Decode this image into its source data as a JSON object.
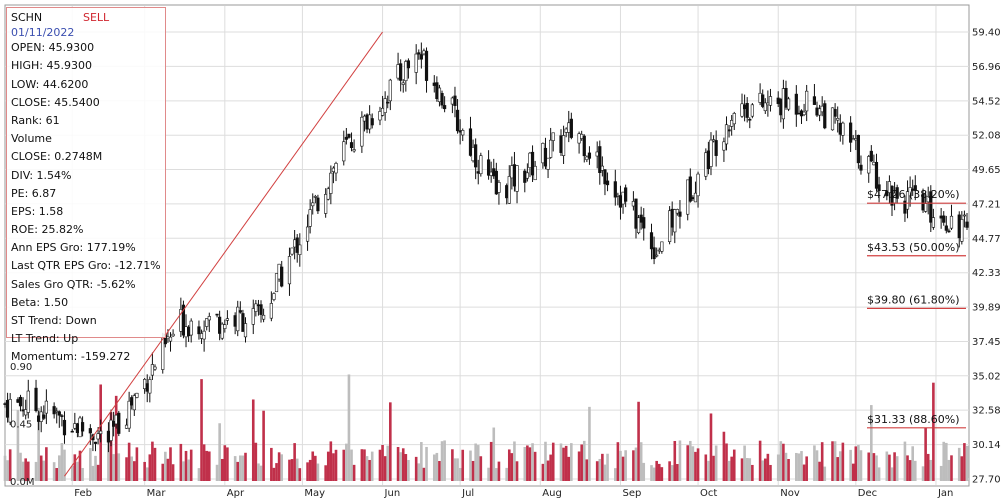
{
  "ticker": "SCHN",
  "signal": "SELL",
  "date": "01/11/2022",
  "stats": [
    {
      "label": "OPEN",
      "value": "45.9300"
    },
    {
      "label": "HIGH",
      "value": "45.9300"
    },
    {
      "label": "LOW",
      "value": "44.6200"
    },
    {
      "label": "CLOSE",
      "value": "45.5400"
    },
    {
      "label": "Rank",
      "value": "61"
    }
  ],
  "volume_title": "Volume",
  "volume_close": {
    "label": "CLOSE",
    "value": "0.2748M"
  },
  "fundamentals": [
    {
      "label": "DIV",
      "value": "1.54%"
    },
    {
      "label": "PE",
      "value": "6.87"
    },
    {
      "label": "EPS",
      "value": "1.58"
    },
    {
      "label": "ROE",
      "value": "25.82%"
    },
    {
      "label": "Ann EPS Gro",
      "value": "177.19%"
    },
    {
      "label": "Last QTR EPS Gro",
      "value": "-12.71%"
    },
    {
      "label": "Sales Gro QTR",
      "value": "-5.62%"
    },
    {
      "label": "Beta",
      "value": "1.50"
    },
    {
      "label": "ST Trend",
      "value": "Down"
    },
    {
      "label": "LT Trend",
      "value": "Up"
    },
    {
      "label": "Momentum",
      "value": "-159.272"
    }
  ],
  "colors": {
    "up": "#c0304a",
    "down": "#bdbdbd",
    "fib": "#d24040",
    "candle": "#111111",
    "grid": "#dddddd",
    "accent": "#d0262f"
  },
  "chart_data": {
    "type": "candlestick",
    "title": "SCHN",
    "price_axis": {
      "ticks": [
        "59.40",
        "56.96",
        "54.52",
        "52.08",
        "49.65",
        "47.21",
        "44.77",
        "42.33",
        "39.89",
        "37.45",
        "35.02",
        "32.58",
        "30.14",
        "27.70"
      ],
      "ylim": [
        27.7,
        59.4
      ]
    },
    "volume_axis": {
      "ticks": [
        "0.90",
        "0.45",
        "0.0M"
      ],
      "unit": "M",
      "ylim": [
        0,
        1.35
      ]
    },
    "x_labels": [
      "Feb",
      "Mar",
      "Apr",
      "May",
      "Jun",
      "Jul",
      "Aug",
      "Sep",
      "Oct",
      "Nov",
      "Dec",
      "Jan"
    ],
    "grid": true,
    "trendline": {
      "from": {
        "date": "2021-01-29",
        "price": 27.9
      },
      "to": {
        "date": "2021-06-01",
        "price": 59.4
      }
    },
    "fibonacci": [
      {
        "label": "$47.26 (38.20%)",
        "price": 47.26
      },
      {
        "label": "$43.53 (50.00%)",
        "price": 43.53
      },
      {
        "label": "$39.80 (61.80%)",
        "price": 39.8
      },
      {
        "label": "$31.33 (88.60%)",
        "price": 31.33
      }
    ],
    "price_path": [
      {
        "month": "Jan",
        "close": 33.0
      },
      {
        "month": "Feb",
        "close": 30.5
      },
      {
        "month": "Mar",
        "close": 38.8
      },
      {
        "month": "Apr",
        "close": 39.2
      },
      {
        "month": "May",
        "close": 50.5
      },
      {
        "month": "Jun",
        "close": 58.0
      },
      {
        "month": "Jul",
        "close": 48.0
      },
      {
        "month": "Aug",
        "close": 52.5
      },
      {
        "month": "Sep",
        "close": 44.0
      },
      {
        "month": "Oct",
        "close": 54.0
      },
      {
        "month": "Nov",
        "close": 54.5
      },
      {
        "month": "Dec",
        "close": 48.0
      },
      {
        "month": "Jan",
        "close": 45.54
      }
    ],
    "last": {
      "open": 45.93,
      "high": 45.93,
      "low": 44.62,
      "close": 45.54,
      "volume_m": 0.2748
    }
  }
}
